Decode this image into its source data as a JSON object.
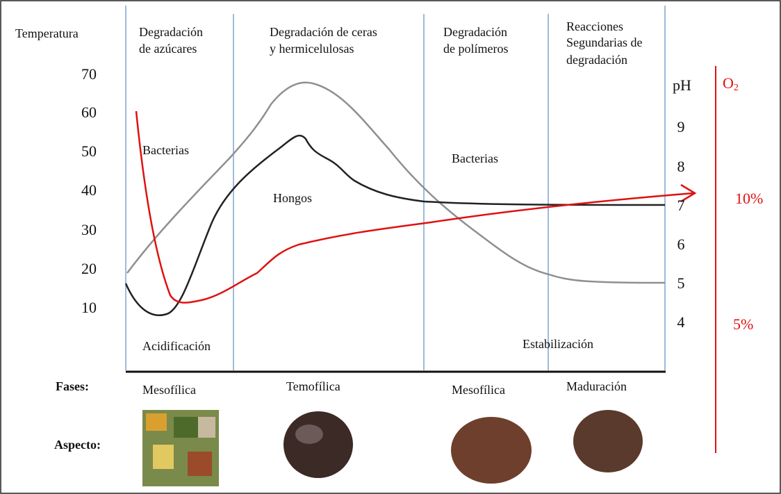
{
  "left_axis": {
    "title": "Temperatura",
    "labels": [
      "70",
      "60",
      "50",
      "40",
      "30",
      "20",
      "10"
    ]
  },
  "right_axis": {
    "title": "pH",
    "labels": [
      "9",
      "8",
      "7",
      "6",
      "5",
      "4"
    ]
  },
  "o2_axis": {
    "symbol": "O",
    "subscript": "2",
    "labels": [
      "10%",
      "5%"
    ]
  },
  "stages": [
    {
      "lines": [
        "Degradación",
        "de azúcares"
      ]
    },
    {
      "lines": [
        "Degradación de ceras",
        "y hermicelulosas"
      ]
    },
    {
      "lines": [
        "Degradación",
        "de polímeros"
      ]
    },
    {
      "lines": [
        "Reacciones",
        "Segundarias de",
        "degradación"
      ]
    }
  ],
  "annotations": [
    "Bacterias",
    "Hongos",
    "Bacterias",
    "Acidificación",
    "Estabilización"
  ],
  "phases": {
    "label": "Fases:",
    "items": [
      "Mesofílica",
      "Temofílica",
      "Mesofílica",
      "Maduración"
    ]
  },
  "aspect": {
    "label": "Aspecto:"
  }
}
